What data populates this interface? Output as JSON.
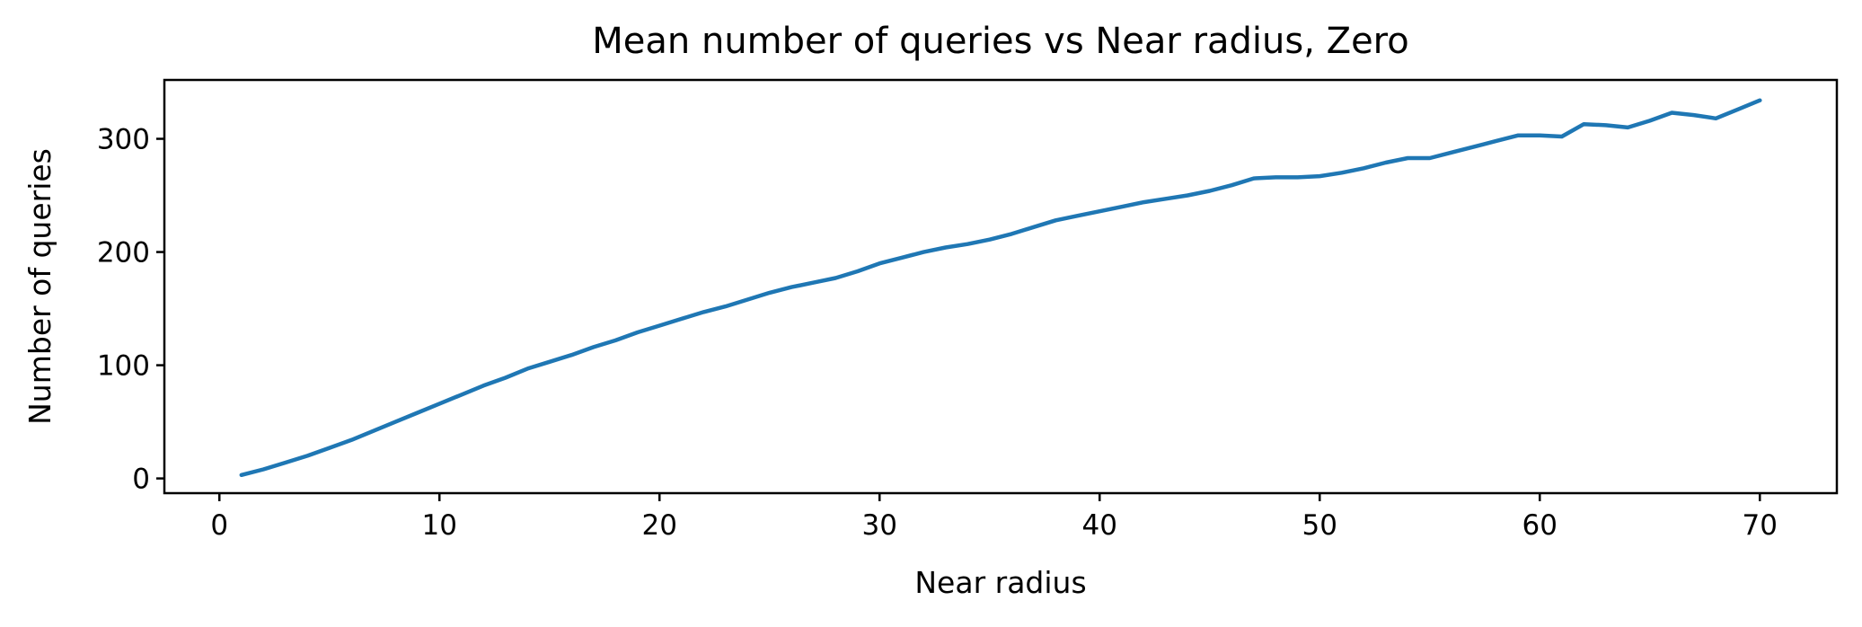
{
  "chart_data": {
    "type": "line",
    "title": "Mean number of queries vs Near radius, Zero",
    "xlabel": "Near radius",
    "ylabel": "Number of queries",
    "xlim": [
      -2.5,
      73.5
    ],
    "ylim": [
      -13,
      352
    ],
    "xticks": [
      0,
      10,
      20,
      30,
      40,
      50,
      60,
      70
    ],
    "xtick_labels": [
      "0",
      "10",
      "20",
      "30",
      "40",
      "50",
      "60",
      "70"
    ],
    "yticks": [
      0,
      100,
      200,
      300
    ],
    "ytick_labels": [
      "0",
      "100",
      "200",
      "300"
    ],
    "grid": false,
    "legend": "none",
    "color": "#1f77b4",
    "series": [
      {
        "x": [
          1,
          2,
          3,
          4,
          5,
          6,
          7,
          8,
          9,
          10,
          11,
          12,
          13,
          14,
          15,
          16,
          17,
          18,
          19,
          20,
          21,
          22,
          23,
          24,
          25,
          26,
          27,
          28,
          29,
          30,
          31,
          32,
          33,
          34,
          35,
          36,
          37,
          38,
          39,
          40,
          41,
          42,
          43,
          44,
          45,
          46,
          47,
          48,
          49,
          50,
          51,
          52,
          53,
          54,
          55,
          56,
          57,
          58,
          59,
          60,
          61,
          62,
          63,
          64,
          65,
          66,
          67,
          68,
          69,
          70
        ],
        "values": [
          3,
          8,
          14,
          20,
          27,
          34,
          42,
          50,
          58,
          66,
          74,
          82,
          89,
          97,
          103,
          109,
          116,
          122,
          129,
          135,
          141,
          147,
          152,
          158,
          164,
          169,
          173,
          177,
          183,
          190,
          195,
          200,
          204,
          207,
          211,
          216,
          222,
          228,
          232,
          236,
          240,
          244,
          247,
          250,
          254,
          259,
          265,
          266,
          266,
          267,
          270,
          274,
          279,
          283,
          283,
          288,
          293,
          298,
          303,
          303,
          302,
          313,
          312,
          310,
          316,
          323,
          321,
          318,
          326,
          334
        ]
      }
    ]
  }
}
